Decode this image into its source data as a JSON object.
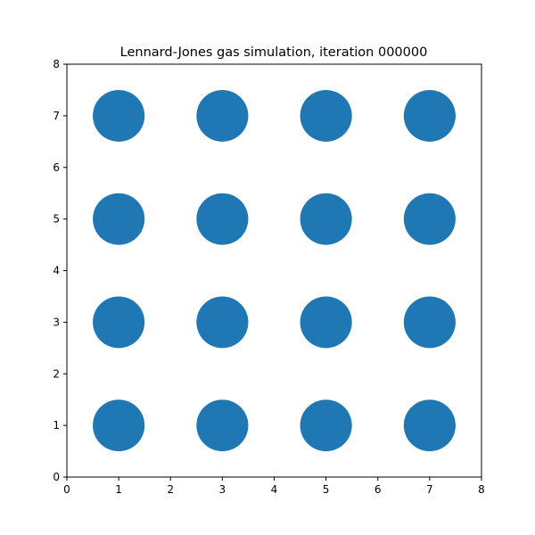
{
  "chart_data": {
    "type": "scatter",
    "title": "Lennard-Jones gas simulation, iteration 000000",
    "xlabel": "",
    "ylabel": "",
    "xlim": [
      0,
      8
    ],
    "ylim": [
      0,
      8
    ],
    "grid": false,
    "x_ticks": [
      0,
      1,
      2,
      3,
      4,
      5,
      6,
      7,
      8
    ],
    "y_ticks": [
      0,
      1,
      2,
      3,
      4,
      5,
      6,
      7,
      8
    ],
    "marker_radius": 0.5,
    "series": [
      {
        "name": "particles",
        "color": "#1f77b4",
        "points": [
          {
            "x": 1,
            "y": 1
          },
          {
            "x": 3,
            "y": 1
          },
          {
            "x": 5,
            "y": 1
          },
          {
            "x": 7,
            "y": 1
          },
          {
            "x": 1,
            "y": 3
          },
          {
            "x": 3,
            "y": 3
          },
          {
            "x": 5,
            "y": 3
          },
          {
            "x": 7,
            "y": 3
          },
          {
            "x": 1,
            "y": 5
          },
          {
            "x": 3,
            "y": 5
          },
          {
            "x": 5,
            "y": 5
          },
          {
            "x": 7,
            "y": 5
          },
          {
            "x": 1,
            "y": 7
          },
          {
            "x": 3,
            "y": 7
          },
          {
            "x": 5,
            "y": 7
          },
          {
            "x": 7,
            "y": 7
          }
        ]
      }
    ]
  }
}
